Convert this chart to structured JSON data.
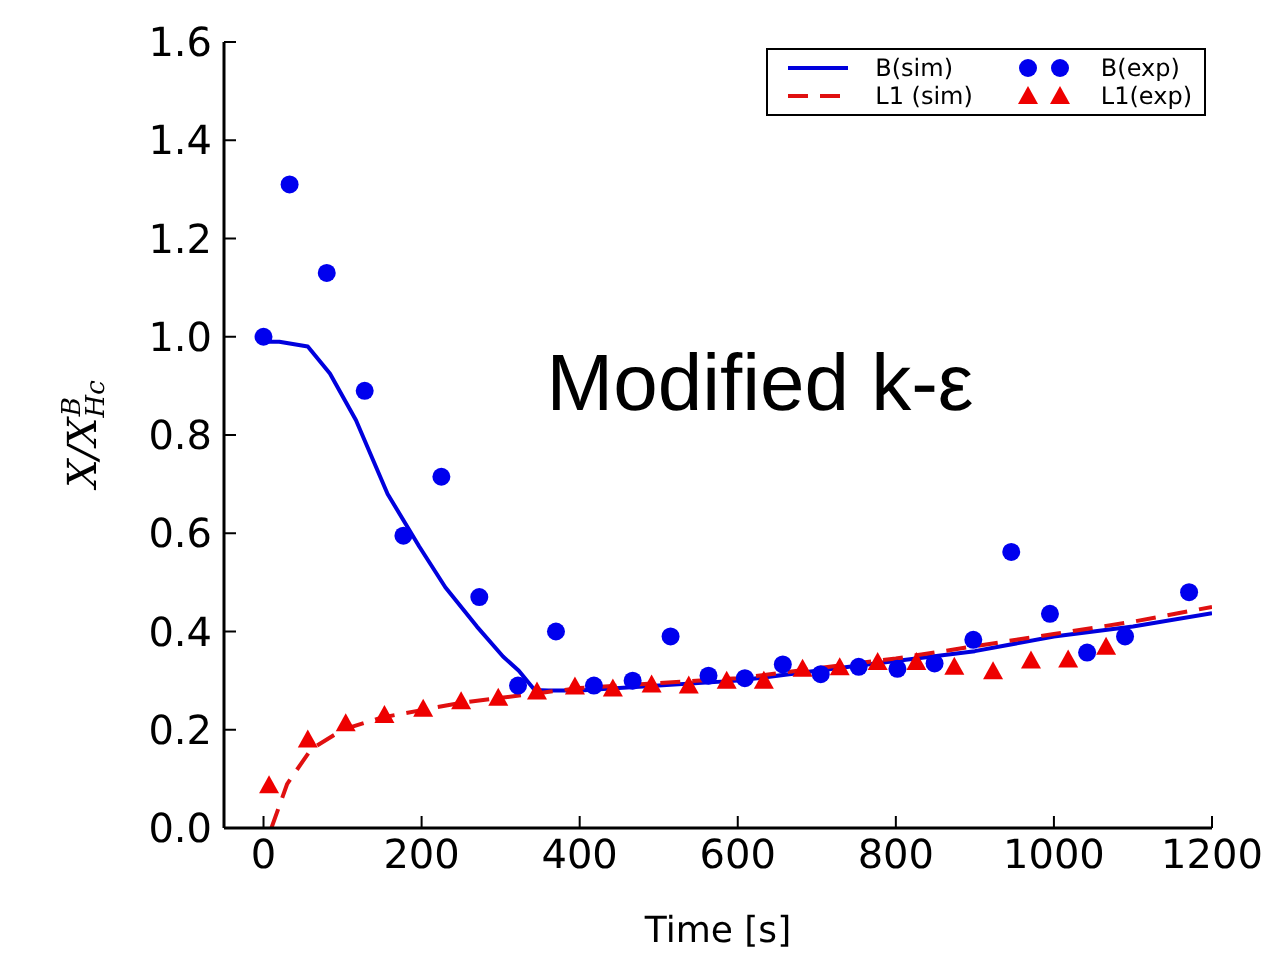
{
  "chart_data": {
    "type": "line",
    "xlabel": "Time [s]",
    "ylabel": "X/X$_{Hc}$$^{B}$",
    "annotations": [
      "Modified k-ε"
    ],
    "xlim": [
      -50,
      1200
    ],
    "xticks": [
      0,
      200,
      400,
      600,
      800,
      1000,
      1200
    ],
    "ylim": [
      0,
      1.6
    ],
    "yticks": [
      {
        "value": 0,
        "label": "0.0"
      },
      {
        "value": 0.2,
        "label": "0.2"
      },
      {
        "value": 0.4,
        "label": "0.4"
      },
      {
        "value": 0.6,
        "label": "0.6"
      },
      {
        "value": 0.8,
        "label": "0.8"
      },
      {
        "value": 1,
        "label": "1.0"
      },
      {
        "value": 1.2,
        "label": "1.2"
      },
      {
        "value": 1.4,
        "label": "1.4"
      },
      {
        "value": 1.6,
        "label": "1.6"
      }
    ],
    "grid": false,
    "legend": "top right",
    "series": [
      {
        "name": "B(sim)",
        "color": "#0000dd",
        "line_style": "solid",
        "marker": "none",
        "x": [
          0,
          20,
          56,
          84,
          117,
          157,
          197,
          230,
          270,
          303,
          323,
          343,
          360,
          400,
          500,
          600,
          700,
          800,
          900,
          1000,
          1100,
          1200
        ],
        "values": [
          0.99,
          0.99,
          0.98,
          0.925,
          0.83,
          0.68,
          0.573,
          0.49,
          0.41,
          0.349,
          0.32,
          0.281,
          0.28,
          0.28,
          0.29,
          0.3,
          0.32,
          0.34,
          0.36,
          0.39,
          0.41,
          0.437
        ]
      },
      {
        "name": "L1 (sim)",
        "color": "#e01010",
        "line_style": "dashed",
        "marker": "none",
        "x": [
          10,
          30,
          60,
          100,
          150,
          200,
          250,
          300,
          350,
          400,
          500,
          600,
          700,
          800,
          900,
          1000,
          1100,
          1200
        ],
        "values": [
          0,
          0.09,
          0.16,
          0.2,
          0.225,
          0.24,
          0.255,
          0.265,
          0.275,
          0.285,
          0.295,
          0.305,
          0.325,
          0.345,
          0.37,
          0.395,
          0.42,
          0.45
        ]
      },
      {
        "name": "B(exp)",
        "type": "scatter",
        "color": "#0000ee",
        "marker": "circle",
        "x": [
          0,
          33,
          80,
          128,
          177,
          225,
          273,
          322,
          370,
          418,
          467,
          515,
          563,
          609,
          657,
          705,
          753,
          802,
          849,
          898,
          946,
          995,
          1042,
          1090,
          1171
        ],
        "values": [
          1.0,
          1.31,
          1.13,
          0.89,
          0.595,
          0.715,
          0.47,
          0.29,
          0.4,
          0.29,
          0.3,
          0.39,
          0.31,
          0.305,
          0.333,
          0.313,
          0.328,
          0.324,
          0.335,
          0.383,
          0.562,
          0.436,
          0.357,
          0.39,
          0.48
        ]
      },
      {
        "name": "L1(exp)",
        "type": "scatter",
        "color": "#ee0000",
        "marker": "triangle",
        "x": [
          7,
          56,
          104,
          153,
          202,
          250,
          297,
          346,
          394,
          442,
          491,
          538,
          586,
          633,
          682,
          729,
          777,
          826,
          874,
          923,
          971,
          1018,
          1066
        ],
        "values": [
          0.087,
          0.18,
          0.213,
          0.23,
          0.243,
          0.258,
          0.265,
          0.278,
          0.288,
          0.284,
          0.292,
          0.29,
          0.3,
          0.3,
          0.324,
          0.327,
          0.338,
          0.338,
          0.328,
          0.319,
          0.341,
          0.343,
          0.369
        ]
      }
    ]
  }
}
